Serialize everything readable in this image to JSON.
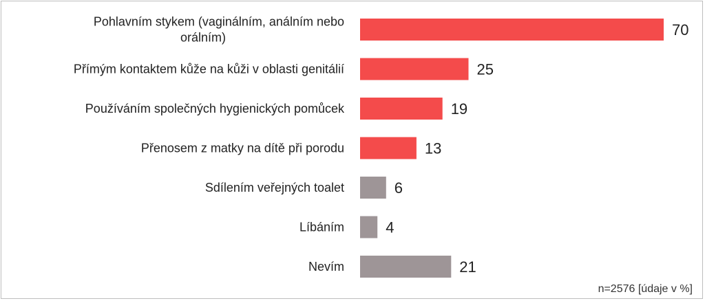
{
  "chart_data": {
    "type": "bar",
    "orientation": "horizontal",
    "categories": [
      [
        "Pohlavním stykem (vaginálním, análním nebo",
        "orálním)"
      ],
      [
        "Přímým kontaktem kůže na kůži v oblasti genitálií"
      ],
      [
        "Používáním společných hygienických pomůcek"
      ],
      [
        "Přenosem z matky na dítě při porodu"
      ],
      [
        "Sdílením veřejných toalet"
      ],
      [
        "Líbáním"
      ],
      [
        "Nevím"
      ]
    ],
    "values": [
      70,
      25,
      19,
      13,
      6,
      4,
      21
    ],
    "value_labels": [
      "70",
      "25",
      "19",
      "13",
      "6",
      "4",
      "21"
    ],
    "colors": [
      "#f44b4b",
      "#f44b4b",
      "#f44b4b",
      "#f44b4b",
      "#9e9597",
      "#9e9597",
      "#9e9597"
    ],
    "grid": false,
    "legend": "none"
  },
  "note": "n=2576 [údaje v %]"
}
